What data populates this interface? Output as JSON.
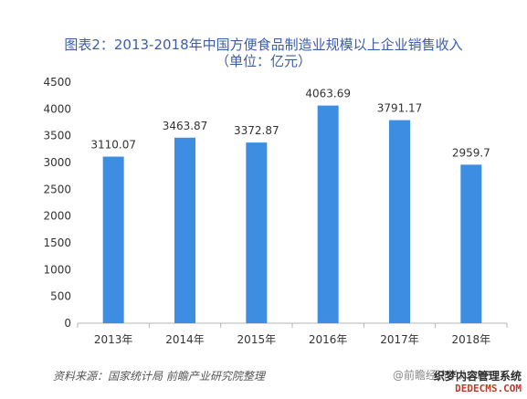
{
  "chart_data": {
    "type": "bar",
    "title": "图表2：2013-2018年中国方便食品制造业规模以上企业销售收入",
    "subtitle": "（单位：亿元）",
    "categories": [
      "2013年",
      "2014年",
      "2015年",
      "2016年",
      "2017年",
      "2018年"
    ],
    "values": [
      3110.07,
      3463.87,
      3372.87,
      4063.69,
      3791.17,
      2959.7
    ],
    "value_labels": [
      "3110.07",
      "3463.87",
      "3372.87",
      "4063.69",
      "3791.17",
      "2959.7"
    ],
    "yticks": [
      0,
      500,
      1000,
      1500,
      2000,
      2500,
      3000,
      3500,
      4000,
      4500
    ],
    "ylim": [
      0,
      4500
    ],
    "xlabel": "",
    "ylabel": "",
    "grid": false,
    "legend": "none",
    "bar_color": "#3d8ee3"
  },
  "footer": {
    "source": "资料来源：国家统计局 前瞻产业研究院整理",
    "watermark": "@前瞻经济学人APP"
  },
  "site_mark": {
    "line1": "织梦内容管理系统",
    "line2": "DEDECMS.COM"
  }
}
